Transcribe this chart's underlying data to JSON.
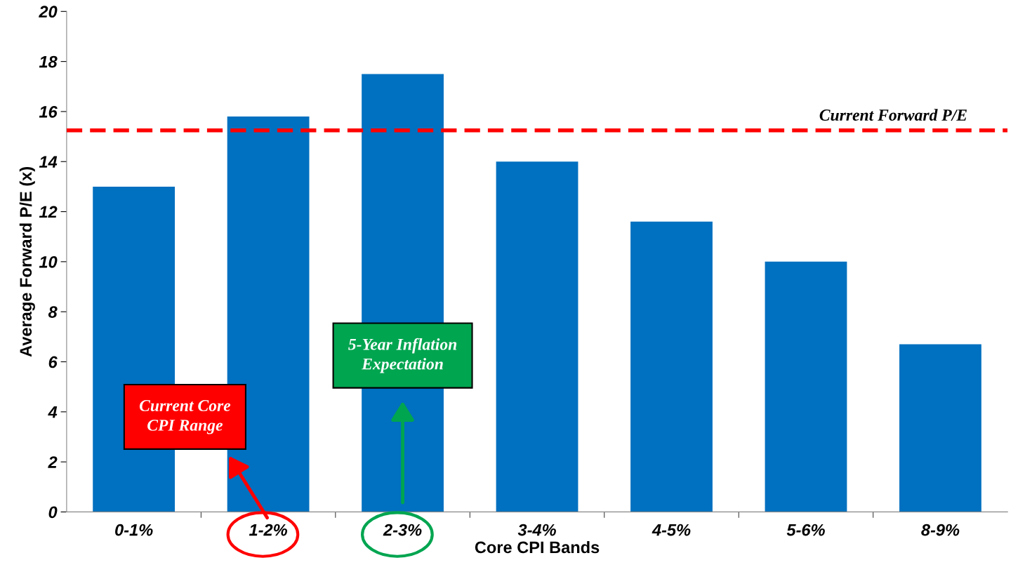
{
  "chart_data": {
    "type": "bar",
    "xlabel": "Core CPI Bands",
    "ylabel": "Average Forward P/E (x)",
    "categories": [
      "0-1%",
      "1-2%",
      "2-3%",
      "3-4%",
      "4-5%",
      "5-6%",
      "8-9%"
    ],
    "values": [
      13.0,
      15.8,
      17.5,
      14.0,
      11.6,
      10.0,
      6.7
    ],
    "color": "#0070c0",
    "ylim": [
      0,
      20
    ],
    "yticks": [
      0,
      2,
      4,
      6,
      8,
      10,
      12,
      14,
      16,
      18,
      20
    ],
    "grid": false,
    "ref_lines": [
      {
        "axis": "y",
        "value": 15.25,
        "label": "Current Forward P/E",
        "color": "#ff0000",
        "line_style": "dashed"
      }
    ],
    "annotations": [
      "Current Core\nCPI Range",
      "5-Year Inflation\nExpectation"
    ]
  }
}
